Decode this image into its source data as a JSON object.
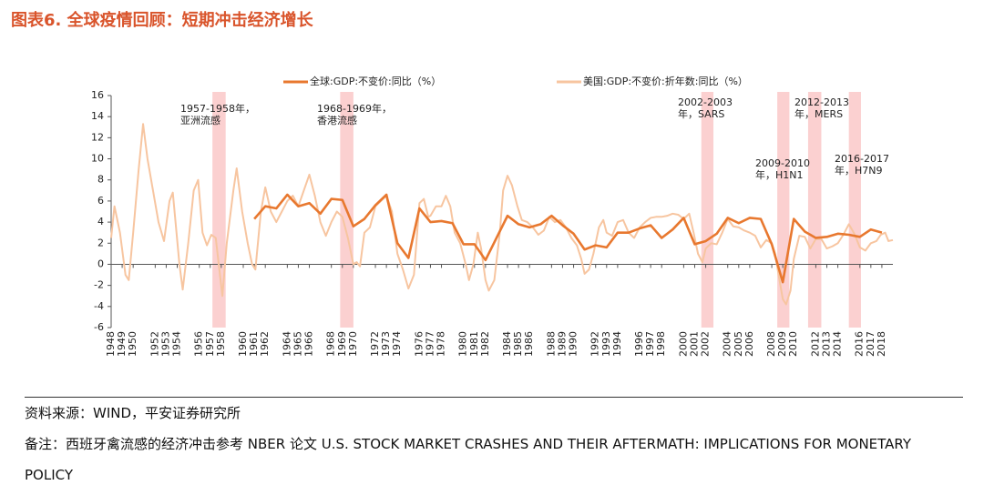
{
  "chart_data": {
    "type": "line",
    "title": "图表6. 全球疫情回顾：短期冲击经济增长",
    "source": "资料来源：WIND，平安证券研究所",
    "note": "备注：西班牙禽流感的经济冲击参考 NBER 论文 U.S. STOCK MARKET CRASHES AND THEIR AFTERMATH: IMPLICATIONS FOR MONETARY POLICY",
    "xlim": [
      1948,
      2019
    ],
    "xticks": [
      1948,
      1949,
      1950,
      1952,
      1953,
      1954,
      1956,
      1957,
      1958,
      1960,
      1961,
      1962,
      1964,
      1965,
      1966,
      1968,
      1969,
      1970,
      1972,
      1973,
      1974,
      1976,
      1977,
      1978,
      1980,
      1981,
      1982,
      1984,
      1985,
      1986,
      1988,
      1989,
      1990,
      1992,
      1993,
      1994,
      1996,
      1997,
      1998,
      2000,
      2001,
      2002,
      2004,
      2005,
      2006,
      2008,
      2009,
      2010,
      2012,
      2013,
      2014,
      2016,
      2017,
      2018
    ],
    "ylim": [
      -6,
      16
    ],
    "yticks": [
      -6,
      -4,
      -2,
      0,
      2,
      4,
      6,
      8,
      10,
      12,
      14,
      16
    ],
    "grid": false,
    "legend": "top",
    "shaded_periods": [
      [
        1957.2,
        1958.4
      ],
      [
        1968.8,
        1970.0
      ],
      [
        2001.6,
        2002.7
      ],
      [
        2008.5,
        2009.6
      ],
      [
        2011.3,
        2012.5
      ],
      [
        2015.0,
        2016.1
      ]
    ],
    "shade_color": "#fbd0d0",
    "annotations": [
      {
        "lines": [
          "1957-1958年，",
          "亚洲流感"
        ]
      },
      {
        "lines": [
          "1968-1969年，",
          "香港流感"
        ]
      },
      {
        "lines": [
          "2002-2003",
          "年，SARS"
        ]
      },
      {
        "lines": [
          "2009-2010",
          "年，H1N1"
        ]
      },
      {
        "lines": [
          "2012-2013",
          "年，MERS"
        ]
      },
      {
        "lines": [
          "2016-2017",
          "年，H7N9"
        ]
      }
    ],
    "series": [
      {
        "name": "全球:GDP:不变价:同比（%）",
        "color": "#e8782f",
        "width": 2.6,
        "x": [
          1961,
          1962,
          1963,
          1964,
          1965,
          1966,
          1967,
          1968,
          1969,
          1970,
          1971,
          1972,
          1973,
          1974,
          1975,
          1976,
          1977,
          1978,
          1979,
          1980,
          1981,
          1982,
          1983,
          1984,
          1985,
          1986,
          1987,
          1988,
          1989,
          1990,
          1991,
          1992,
          1993,
          1994,
          1995,
          1996,
          1997,
          1998,
          1999,
          2000,
          2001,
          2002,
          2003,
          2004,
          2005,
          2006,
          2007,
          2008,
          2009,
          2010,
          2011,
          2012,
          2013,
          2014,
          2015,
          2016,
          2017,
          2018
        ],
        "values": [
          4.3,
          5.5,
          5.3,
          6.6,
          5.5,
          5.8,
          4.8,
          6.2,
          6.1,
          3.6,
          4.3,
          5.6,
          6.6,
          2.0,
          0.6,
          5.3,
          4.0,
          4.1,
          3.9,
          1.9,
          1.9,
          0.4,
          2.5,
          4.6,
          3.8,
          3.5,
          3.8,
          4.6,
          3.7,
          2.9,
          1.4,
          1.8,
          1.6,
          3.0,
          3.0,
          3.4,
          3.7,
          2.5,
          3.3,
          4.4,
          1.9,
          2.2,
          2.9,
          4.4,
          3.9,
          4.4,
          4.3,
          1.9,
          -1.7,
          4.3,
          3.1,
          2.5,
          2.6,
          2.9,
          2.8,
          2.6,
          3.3,
          3.0
        ]
      },
      {
        "name": "美国:GDP:不变价:折年数:同比（%）",
        "color": "#f7c5a0",
        "width": 2,
        "x": [
          1948,
          1948.3,
          1948.8,
          1949.3,
          1949.6,
          1950,
          1950.5,
          1950.9,
          1951.3,
          1951.8,
          1952.3,
          1952.8,
          1953.3,
          1953.6,
          1954.2,
          1954.5,
          1955,
          1955.5,
          1955.9,
          1956.3,
          1956.7,
          1957.1,
          1957.5,
          1958.1,
          1958.5,
          1959.1,
          1959.4,
          1959.9,
          1960.4,
          1960.8,
          1961.1,
          1961.6,
          1962,
          1962.5,
          1963,
          1963.5,
          1964,
          1964.5,
          1965,
          1965.5,
          1966,
          1966.5,
          1967,
          1967.5,
          1968,
          1968.5,
          1969,
          1969.5,
          1970,
          1970.3,
          1970.6,
          1971,
          1971.5,
          1972,
          1972.5,
          1973,
          1973.5,
          1974,
          1974.5,
          1975,
          1975.5,
          1976,
          1976.4,
          1976.8,
          1977,
          1977.5,
          1978,
          1978.4,
          1978.8,
          1979.2,
          1979.7,
          1980.2,
          1980.5,
          1980.9,
          1981.3,
          1981.6,
          1982,
          1982.3,
          1982.8,
          1983.3,
          1983.6,
          1984,
          1984.4,
          1984.9,
          1985.3,
          1985.8,
          1986.3,
          1986.8,
          1987.3,
          1987.8,
          1988.3,
          1988.8,
          1989.3,
          1989.8,
          1990.3,
          1990.7,
          1991,
          1991.4,
          1991.8,
          1992.3,
          1992.7,
          1993,
          1993.5,
          1994,
          1994.5,
          1995,
          1995.5,
          1996,
          1996.5,
          1997,
          1997.5,
          1998,
          1998.5,
          1999,
          1999.5,
          2000,
          2000.5,
          2000.9,
          2001.3,
          2001.7,
          2002,
          2002.5,
          2003,
          2003.5,
          2004,
          2004.5,
          2005,
          2005.5,
          2006,
          2006.5,
          2007,
          2007.5,
          2008,
          2008.3,
          2008.7,
          2009,
          2009.3,
          2009.7,
          2010,
          2010.5,
          2011,
          2011.5,
          2012,
          2012.5,
          2013,
          2013.5,
          2014,
          2014.5,
          2015,
          2015.5,
          2016,
          2016.5,
          2017,
          2017.5,
          2017.9,
          2018.3,
          2018.6,
          2019
        ],
        "values": [
          2.5,
          5.5,
          3,
          -1,
          -1.5,
          3,
          9,
          13.3,
          10,
          7,
          4,
          2.2,
          6,
          6.8,
          0,
          -2.4,
          2,
          7,
          8,
          3,
          1.8,
          2.8,
          2.5,
          -3,
          2,
          7,
          9.1,
          5,
          2,
          0,
          -0.5,
          5,
          7.3,
          5,
          4,
          5,
          6,
          6.5,
          5.5,
          7,
          8.5,
          6.5,
          4,
          2.7,
          4,
          5,
          4.5,
          2.5,
          0,
          0.2,
          -0.2,
          3,
          3.5,
          5.5,
          6,
          6.5,
          5,
          1,
          -0.5,
          -2.3,
          -1,
          5.8,
          6.2,
          4.5,
          4.6,
          5.5,
          5.5,
          6.5,
          5.5,
          3,
          2,
          0,
          -1.5,
          0,
          3,
          1.5,
          -1.5,
          -2.5,
          -1.5,
          3,
          7,
          8.4,
          7.5,
          5.5,
          4.2,
          4,
          3.5,
          2.8,
          3.2,
          4.5,
          4,
          4.2,
          3.5,
          2.5,
          1.8,
          0.5,
          -0.9,
          -0.5,
          1,
          3.5,
          4.2,
          3,
          2.7,
          4,
          4.2,
          3,
          2.5,
          3.5,
          4,
          4.4,
          4.5,
          4.5,
          4.6,
          4.8,
          4.7,
          4.3,
          4.8,
          3,
          1,
          0.2,
          1.5,
          2,
          1.9,
          3,
          4.3,
          3.6,
          3.5,
          3.2,
          3,
          2.7,
          1.6,
          2.3,
          2,
          1,
          -1.5,
          -3.3,
          -3.8,
          -2.5,
          0.5,
          2.7,
          2.6,
          1.5,
          2.4,
          2.4,
          1.5,
          1.7,
          2,
          2.8,
          3.8,
          2.9,
          1.6,
          1.3,
          2,
          2.2,
          2.8,
          3.0,
          2.2,
          2.3
        ]
      }
    ]
  }
}
